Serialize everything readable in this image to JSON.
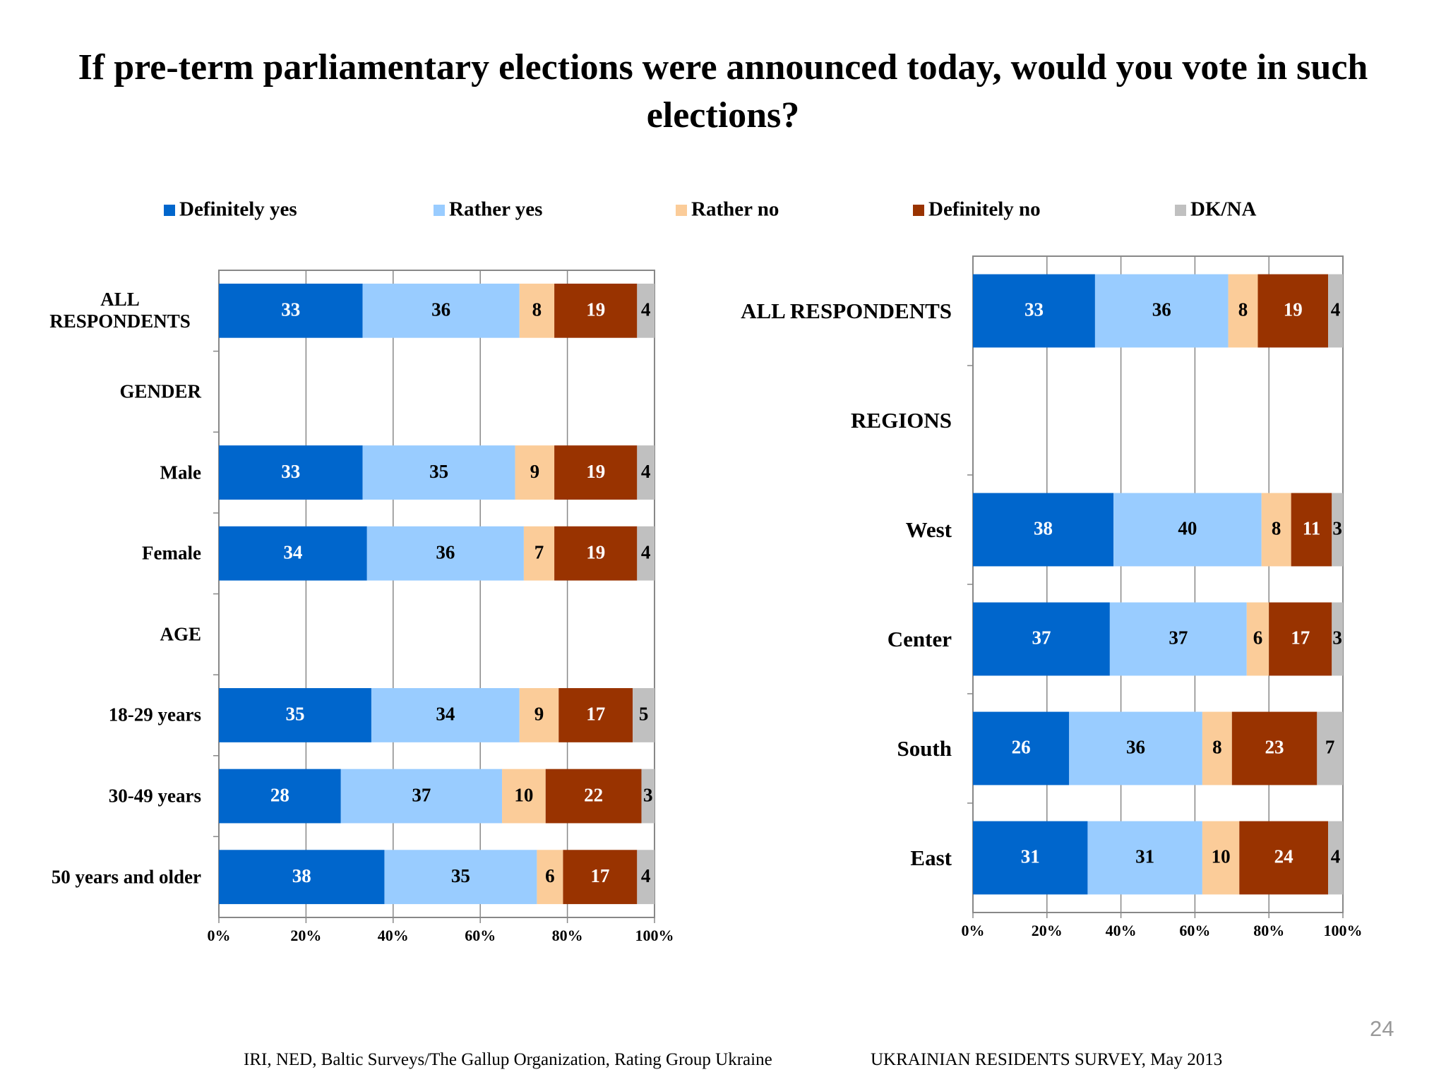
{
  "title": "If pre-term parliamentary elections were announced today, would you vote in such elections?",
  "footer_left": "IRI, NED,  Baltic Surveys/The Gallup Organization, Rating Group Ukraine",
  "footer_right": "UKRAINIAN RESIDENTS SURVEY, May  2013",
  "page_number": "24",
  "chart_data": [
    {
      "type": "bar",
      "orientation": "horizontal",
      "stacked": true,
      "grid": true,
      "categories": [
        "ALL RESPONDENTS",
        "GENDER",
        "Male",
        "Female",
        "AGE",
        "18-29 years",
        "30-49 years",
        "50 years and older"
      ],
      "series": [
        {
          "name": "Definitely yes",
          "color": "#0066cc",
          "values": [
            33,
            null,
            33,
            34,
            null,
            35,
            28,
            38
          ]
        },
        {
          "name": "Rather yes",
          "color": "#99ccff",
          "values": [
            36,
            null,
            35,
            36,
            null,
            34,
            37,
            35
          ]
        },
        {
          "name": "Rather no",
          "color": "#fbcc99",
          "values": [
            8,
            null,
            9,
            7,
            null,
            9,
            10,
            6
          ]
        },
        {
          "name": "Definitely no",
          "color": "#993300",
          "values": [
            19,
            null,
            19,
            19,
            null,
            17,
            22,
            17
          ]
        },
        {
          "name": "DK/NA",
          "color": "#c0c0c0",
          "values": [
            4,
            null,
            4,
            4,
            null,
            5,
            3,
            4
          ]
        }
      ],
      "xlim": [
        0,
        100
      ],
      "xticks": [
        {
          "value": 0,
          "label": "0%"
        },
        {
          "value": 20,
          "label": "20%"
        },
        {
          "value": 40,
          "label": "40%"
        },
        {
          "value": 60,
          "label": "60%"
        },
        {
          "value": 80,
          "label": "80%"
        },
        {
          "value": 100,
          "label": "100%"
        }
      ]
    },
    {
      "type": "bar",
      "orientation": "horizontal",
      "stacked": true,
      "grid": true,
      "categories": [
        "ALL RESPONDENTS",
        "REGIONS",
        "West",
        "Center",
        "South",
        "East"
      ],
      "series": [
        {
          "name": "Definitely yes",
          "color": "#0066cc",
          "values": [
            33,
            null,
            38,
            37,
            26,
            31
          ]
        },
        {
          "name": "Rather yes",
          "color": "#99ccff",
          "values": [
            36,
            null,
            40,
            37,
            36,
            31
          ]
        },
        {
          "name": "Rather no",
          "color": "#fbcc99",
          "values": [
            8,
            null,
            8,
            6,
            8,
            10
          ]
        },
        {
          "name": "Definitely no",
          "color": "#993300",
          "values": [
            19,
            null,
            11,
            17,
            23,
            24
          ]
        },
        {
          "name": "DK/NA",
          "color": "#c0c0c0",
          "values": [
            4,
            null,
            3,
            3,
            7,
            4
          ]
        }
      ],
      "xlim": [
        0,
        100
      ],
      "xticks": [
        {
          "value": 0,
          "label": "0%"
        },
        {
          "value": 20,
          "label": "20%"
        },
        {
          "value": 40,
          "label": "40%"
        },
        {
          "value": 60,
          "label": "60%"
        },
        {
          "value": 80,
          "label": "80%"
        },
        {
          "value": 100,
          "label": "100%"
        }
      ]
    }
  ]
}
